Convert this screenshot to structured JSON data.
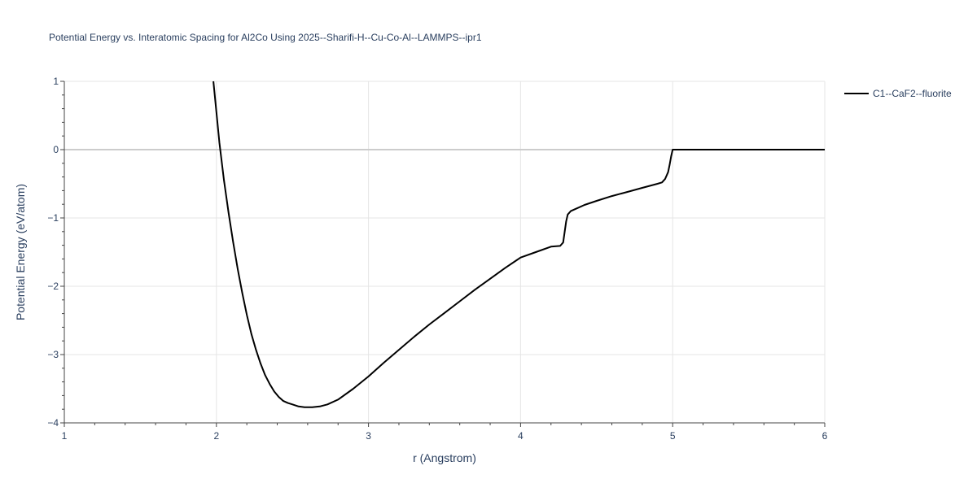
{
  "chart_data": {
    "type": "line",
    "title": "Potential Energy vs. Interatomic Spacing for Al2Co Using 2025--Sharifi-H--Cu-Co-Al--LAMMPS--ipr1",
    "xlabel": "r (Angstrom)",
    "ylabel": "Potential Energy (eV/atom)",
    "xlim": [
      1,
      6
    ],
    "ylim": [
      -4,
      1
    ],
    "x_ticks": [
      1,
      2,
      3,
      4,
      5,
      6
    ],
    "x_tick_labels": [
      "1",
      "2",
      "3",
      "4",
      "5",
      "6"
    ],
    "y_ticks": [
      1,
      0,
      -1,
      -2,
      -3,
      -4
    ],
    "y_tick_labels": [
      "1",
      "0",
      "−1",
      "−2",
      "−3",
      "−4"
    ],
    "grid": true,
    "legend_position": "top-right",
    "series": [
      {
        "name": "C1--CaF2--fluorite",
        "color": "#000000",
        "x": [
          1.98,
          2.0,
          2.02,
          2.05,
          2.08,
          2.11,
          2.14,
          2.17,
          2.2,
          2.23,
          2.26,
          2.29,
          2.32,
          2.35,
          2.38,
          2.41,
          2.44,
          2.47,
          2.5,
          2.54,
          2.58,
          2.63,
          2.68,
          2.73,
          2.8,
          2.9,
          3.0,
          3.1,
          3.2,
          3.3,
          3.4,
          3.5,
          3.6,
          3.7,
          3.8,
          3.9,
          4.0,
          4.1,
          4.2,
          4.26,
          4.28,
          4.29,
          4.3,
          4.31,
          4.33,
          4.36,
          4.42,
          4.5,
          4.6,
          4.7,
          4.8,
          4.9,
          4.93,
          4.95,
          4.97,
          4.98,
          4.99,
          5.0,
          5.1,
          5.5,
          6.0
        ],
        "y": [
          1.0,
          0.55,
          0.1,
          -0.45,
          -0.92,
          -1.35,
          -1.75,
          -2.1,
          -2.42,
          -2.7,
          -2.93,
          -3.13,
          -3.3,
          -3.43,
          -3.54,
          -3.62,
          -3.68,
          -3.71,
          -3.73,
          -3.76,
          -3.77,
          -3.77,
          -3.76,
          -3.73,
          -3.66,
          -3.5,
          -3.32,
          -3.12,
          -2.93,
          -2.74,
          -2.56,
          -2.39,
          -2.22,
          -2.05,
          -1.89,
          -1.73,
          -1.58,
          -1.5,
          -1.42,
          -1.41,
          -1.36,
          -1.2,
          -1.05,
          -0.95,
          -0.9,
          -0.87,
          -0.81,
          -0.75,
          -0.68,
          -0.62,
          -0.56,
          -0.5,
          -0.48,
          -0.43,
          -0.33,
          -0.22,
          -0.1,
          0.0,
          0.0,
          0.0,
          0.0
        ]
      }
    ]
  }
}
